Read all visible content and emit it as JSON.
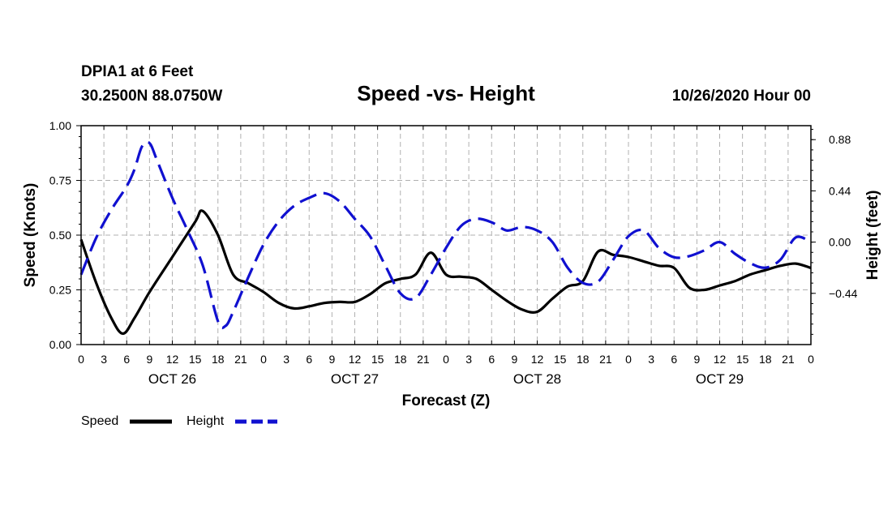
{
  "header": {
    "station": "DPIA1 at 6 Feet",
    "location": "30.2500N 88.0750W",
    "title": "Speed -vs- Height",
    "datetime": "10/26/2020 Hour 00"
  },
  "colors": {
    "speed": "#000000",
    "height": "#1010d0",
    "grid": "#b0b0b0"
  },
  "chart_data": {
    "type": "line",
    "title": "Speed -vs- Height",
    "xlabel": "Forecast (Z)",
    "ylabel": "Speed (Knots)",
    "y2label": "Height (feet)",
    "xlim": [
      0,
      96
    ],
    "ylim": [
      0,
      1.0
    ],
    "y2lim": [
      -0.88,
      1.0
    ],
    "x_ticks": [
      0,
      3,
      6,
      9,
      12,
      15,
      18,
      21,
      24,
      27,
      30,
      33,
      36,
      39,
      42,
      45,
      48,
      51,
      54,
      57,
      60,
      63,
      66,
      69,
      72,
      75,
      78,
      81,
      84,
      87,
      90,
      93,
      96
    ],
    "x_tick_labels": [
      "0",
      "3",
      "6",
      "9",
      "12",
      "15",
      "18",
      "21",
      "0",
      "3",
      "6",
      "9",
      "12",
      "15",
      "18",
      "21",
      "0",
      "3",
      "6",
      "9",
      "12",
      "15",
      "18",
      "21",
      "0",
      "3",
      "6",
      "9",
      "12",
      "15",
      "18",
      "21",
      "0"
    ],
    "date_labels": [
      {
        "x": 12,
        "label": "OCT 26"
      },
      {
        "x": 36,
        "label": "OCT 27"
      },
      {
        "x": 60,
        "label": "OCT 28"
      },
      {
        "x": 84,
        "label": "OCT 29"
      }
    ],
    "y_ticks": [
      0.0,
      0.25,
      0.5,
      0.75,
      1.0
    ],
    "y_tick_labels": [
      "0.00",
      "0.25",
      "0.50",
      "0.75",
      "1.00"
    ],
    "y2_ticks": [
      -0.44,
      0.0,
      0.44,
      0.88
    ],
    "y2_tick_labels": [
      "−0.44",
      "0.00",
      "0.44",
      "0.88"
    ],
    "series": [
      {
        "name": "Speed",
        "axis": "left",
        "style": "solid",
        "x": [
          0,
          2,
          4,
          5.5,
          7,
          9,
          12,
          15,
          16,
          18,
          20,
          22,
          24,
          26,
          28,
          30,
          32,
          34,
          36,
          38,
          40,
          42,
          44,
          46,
          48,
          50,
          52,
          54,
          56,
          58,
          60,
          62,
          64,
          66,
          68,
          70,
          72,
          74,
          76,
          78,
          80,
          82,
          84,
          86,
          88,
          90,
          92,
          94,
          96
        ],
        "values": [
          0.48,
          0.28,
          0.12,
          0.05,
          0.12,
          0.24,
          0.4,
          0.56,
          0.61,
          0.5,
          0.32,
          0.28,
          0.24,
          0.19,
          0.165,
          0.175,
          0.19,
          0.195,
          0.195,
          0.23,
          0.28,
          0.3,
          0.32,
          0.42,
          0.32,
          0.31,
          0.3,
          0.25,
          0.2,
          0.16,
          0.15,
          0.21,
          0.265,
          0.29,
          0.425,
          0.41,
          0.4,
          0.38,
          0.36,
          0.35,
          0.26,
          0.25,
          0.27,
          0.29,
          0.32,
          0.34,
          0.36,
          0.37,
          0.35
        ]
      },
      {
        "name": "Height",
        "axis": "right",
        "style": "dashed",
        "x": [
          0,
          2,
          4,
          6,
          7,
          8,
          9,
          10,
          12,
          14,
          16,
          18,
          19,
          20,
          22,
          24,
          26,
          28,
          30,
          32,
          34,
          36,
          38,
          40,
          42,
          44,
          46,
          48,
          50,
          52,
          54,
          56,
          58,
          60,
          62,
          64,
          66,
          68,
          70,
          72,
          74,
          76,
          78,
          80,
          82,
          84,
          86,
          88,
          90,
          92,
          94,
          96
        ],
        "values": [
          -0.28,
          0.04,
          0.28,
          0.48,
          0.62,
          0.82,
          0.85,
          0.7,
          0.38,
          0.1,
          -0.2,
          -0.68,
          -0.72,
          -0.6,
          -0.3,
          -0.02,
          0.18,
          0.31,
          0.38,
          0.42,
          0.35,
          0.2,
          0.05,
          -0.2,
          -0.44,
          -0.48,
          -0.28,
          -0.05,
          0.14,
          0.2,
          0.17,
          0.1,
          0.13,
          0.1,
          0.0,
          -0.22,
          -0.35,
          -0.34,
          -0.15,
          0.05,
          0.1,
          -0.05,
          -0.13,
          -0.12,
          -0.07,
          0.0,
          -0.1,
          -0.18,
          -0.22,
          -0.15,
          0.04,
          0.0
        ]
      }
    ],
    "legend": [
      {
        "label": "Speed",
        "style": "solid"
      },
      {
        "label": "Height",
        "style": "dashed"
      }
    ],
    "legend_position": "bottom-left",
    "grid": true
  }
}
